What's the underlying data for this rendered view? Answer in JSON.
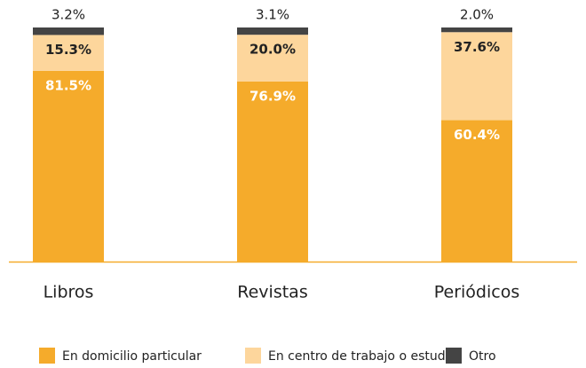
{
  "chart_data": {
    "type": "bar",
    "stacked": true,
    "categories": [
      "Libros",
      "Revistas",
      "Periódicos"
    ],
    "series": [
      {
        "name": "En domicilio particular",
        "color": "#f5ab2b",
        "values": [
          81.5,
          76.9,
          60.4
        ],
        "value_labels": [
          "81.5%",
          "76.9%",
          "60.4%"
        ]
      },
      {
        "name": "En centro de trabajo o estudio",
        "color": "#fdd69c",
        "values": [
          15.3,
          20.0,
          37.6
        ],
        "value_labels": [
          "15.3%",
          "20.0%",
          "37.6%"
        ]
      },
      {
        "name": "Otro",
        "color": "#444444",
        "values": [
          3.2,
          3.1,
          2.0
        ],
        "value_labels": [
          "3.2%",
          "3.1%",
          "2.0%"
        ]
      }
    ]
  }
}
